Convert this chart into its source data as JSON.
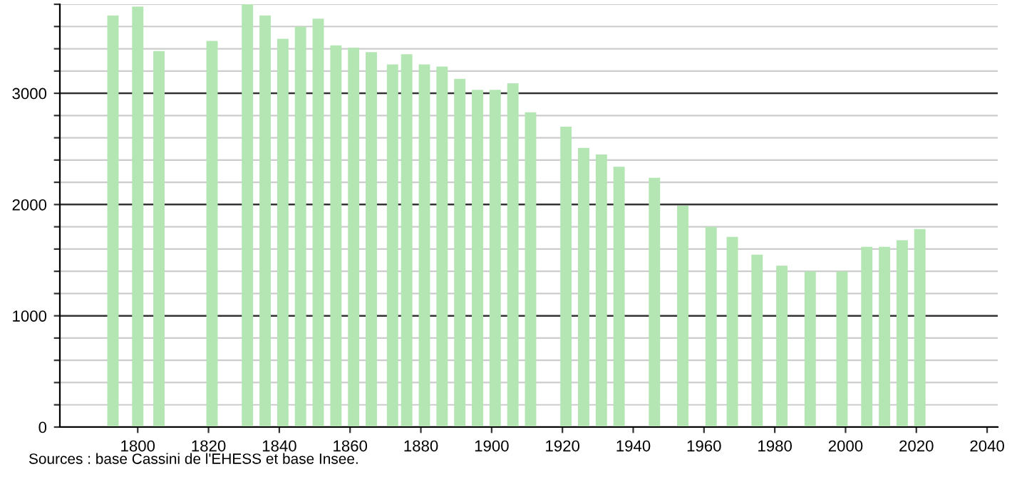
{
  "chart_data": {
    "type": "bar",
    "color": "#b3e6b3",
    "x": [
      1793,
      1800,
      1806,
      1821,
      1831,
      1836,
      1841,
      1846,
      1851,
      1856,
      1861,
      1866,
      1872,
      1876,
      1881,
      1886,
      1891,
      1896,
      1901,
      1906,
      1911,
      1921,
      1926,
      1931,
      1936,
      1946,
      1954,
      1962,
      1968,
      1975,
      1982,
      1990,
      1999,
      2006,
      2011,
      2016,
      2021
    ],
    "values": [
      3700,
      3780,
      3380,
      3470,
      3800,
      3700,
      3490,
      3600,
      3670,
      3430,
      3410,
      3370,
      3260,
      3350,
      3260,
      3240,
      3130,
      3030,
      3030,
      3090,
      2830,
      2700,
      2510,
      2450,
      2340,
      2240,
      1990,
      1800,
      1710,
      1550,
      1450,
      1400,
      1400,
      1620,
      1620,
      1680,
      1780
    ],
    "xlim": [
      1778,
      2043
    ],
    "xticks": [
      1800,
      1820,
      1840,
      1860,
      1880,
      1900,
      1920,
      1940,
      1960,
      1980,
      2000,
      2020,
      2040
    ],
    "ylim": [
      0,
      3800
    ],
    "yticks": [
      0,
      {
        "value": 200,
        "label": null
      },
      {
        "value": 400,
        "label": null
      },
      {
        "value": 600,
        "label": null
      },
      {
        "value": 800,
        "label": null
      },
      1000,
      {
        "value": 1200,
        "label": null
      },
      {
        "value": 1400,
        "label": null
      },
      {
        "value": 1600,
        "label": null
      },
      {
        "value": 1800,
        "label": null
      },
      2000,
      {
        "value": 2200,
        "label": null
      },
      {
        "value": 2400,
        "label": null
      },
      {
        "value": 2600,
        "label": null
      },
      {
        "value": 2800,
        "label": null
      },
      3000,
      {
        "value": 3200,
        "label": null
      },
      {
        "value": 3400,
        "label": null
      },
      {
        "value": 3600,
        "label": null
      },
      {
        "value": 3800,
        "label": null
      }
    ],
    "grid": "y",
    "annotations": [
      "Sources : base Cassini de l'EHESS et base Insee."
    ]
  }
}
